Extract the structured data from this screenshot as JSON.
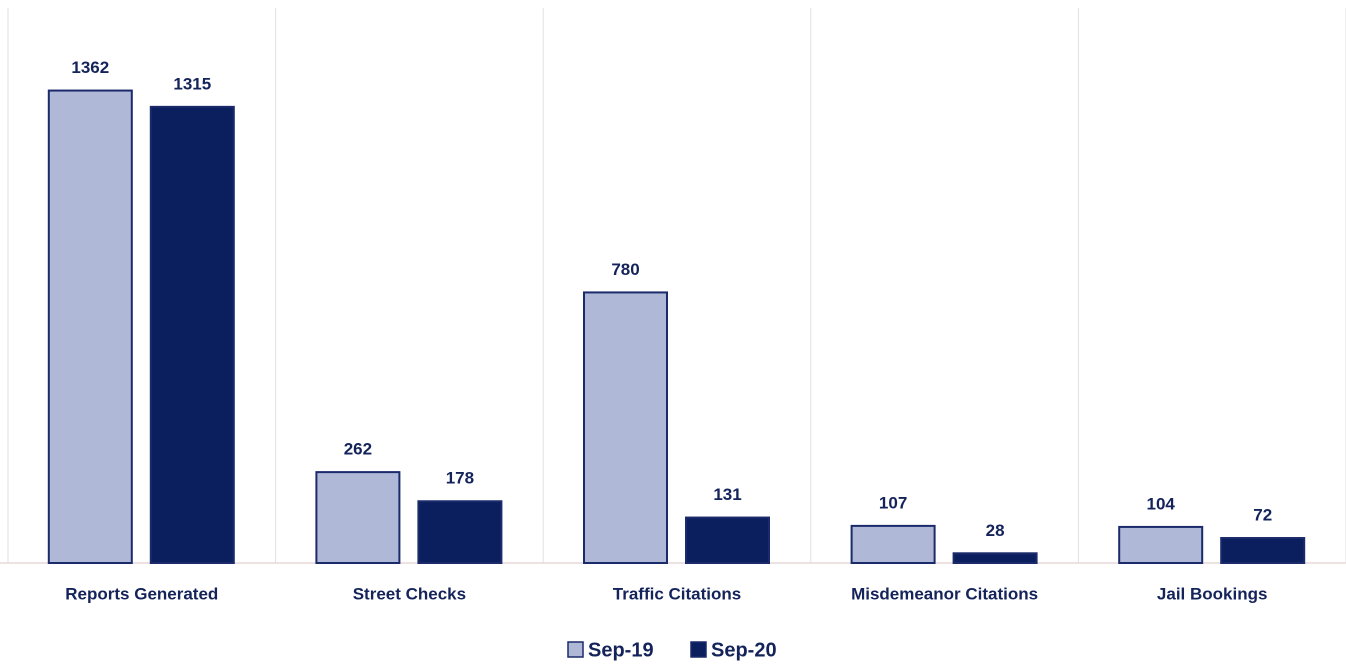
{
  "chart_data": {
    "type": "bar",
    "categories": [
      "Reports Generated",
      "Street Checks",
      "Traffic Citations",
      "Misdemeanor Citations",
      "Jail Bookings"
    ],
    "series": [
      {
        "name": "Sep-19",
        "color": "#b0b8d8",
        "values": [
          1362,
          262,
          780,
          107,
          104
        ]
      },
      {
        "name": "Sep-20",
        "color": "#0b1f5e",
        "values": [
          1315,
          178,
          131,
          28,
          72
        ]
      }
    ],
    "ylim": [
      0,
      1600
    ],
    "legend": "bottom"
  }
}
